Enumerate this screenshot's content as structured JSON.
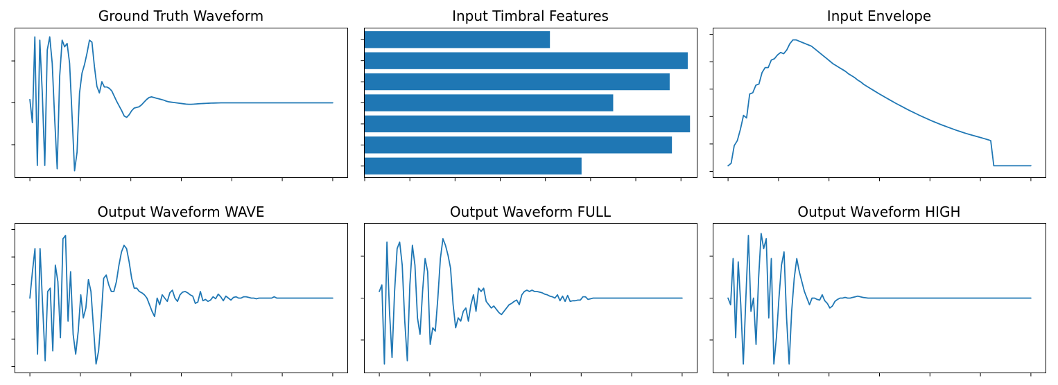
{
  "colors": {
    "series": "#1f77b4",
    "axes": "#000000",
    "background": "#ffffff"
  },
  "chart_data": [
    {
      "type": "line",
      "title": "Ground Truth Waveform",
      "xlabel": "",
      "ylabel": "",
      "x_ticks": 7,
      "y_ticks": 3,
      "xlim": [
        0,
        1
      ],
      "ylim": [
        -1.05,
        1.05
      ],
      "grid": false,
      "legend": "none",
      "values": [
        0.05,
        -0.3,
        1.0,
        -0.95,
        0.95,
        0.15,
        -0.95,
        0.8,
        1.0,
        0.6,
        -0.25,
        -1.0,
        0.4,
        0.95,
        0.85,
        0.9,
        0.6,
        -0.2,
        -1.03,
        -0.75,
        0.15,
        0.45,
        0.58,
        0.75,
        0.95,
        0.92,
        0.55,
        0.25,
        0.15,
        0.32,
        0.24,
        0.24,
        0.22,
        0.18,
        0.1,
        0.02,
        -0.05,
        -0.12,
        -0.2,
        -0.22,
        -0.18,
        -0.12,
        -0.08,
        -0.07,
        -0.06,
        -0.03,
        0.01,
        0.05,
        0.08,
        0.09,
        0.08,
        0.07,
        0.06,
        0.05,
        0.04,
        0.025,
        0.015,
        0.01,
        0.005,
        0.0,
        -0.005,
        -0.01,
        -0.015,
        -0.02,
        -0.022,
        -0.022,
        -0.02,
        -0.017,
        -0.014,
        -0.012,
        -0.01,
        -0.008,
        -0.006,
        -0.004,
        -0.003,
        -0.002,
        -0.001,
        0.0,
        0.0,
        0.0,
        0.0,
        0.0,
        0.0,
        0.0,
        0.0,
        0.0,
        0.0,
        0.0,
        0.0,
        0.0,
        0.0,
        0.0,
        0.0,
        0.0,
        0.0,
        0.0,
        0.0,
        0.0,
        0.0,
        0.0,
        0.0,
        0.0,
        0.0,
        0.0,
        0.0,
        0.0,
        0.0,
        0.0,
        0.0,
        0.0,
        0.0,
        0.0,
        0.0,
        0.0,
        0.0,
        0.0,
        0.0,
        0.0,
        0.0,
        0.0,
        0.0,
        0.0,
        0.0
      ]
    },
    {
      "type": "bar",
      "orientation": "horizontal",
      "title": "Input Timbral Features",
      "xlabel": "",
      "ylabel": "",
      "x_ticks": 8,
      "y_ticks": 7,
      "xlim": [
        0,
        0.735
      ],
      "grid": false,
      "legend": "none",
      "values": [
        0.41,
        0.715,
        0.675,
        0.55,
        0.72,
        0.68,
        0.48
      ]
    },
    {
      "type": "line",
      "title": "Input Envelope",
      "xlabel": "",
      "ylabel": "",
      "x_ticks": 7,
      "y_ticks": 6,
      "xlim": [
        0,
        1
      ],
      "ylim": [
        -0.05,
        1.05
      ],
      "grid": false,
      "legend": "none",
      "values": [
        0.0,
        0.02,
        0.16,
        0.2,
        0.29,
        0.4,
        0.38,
        0.57,
        0.58,
        0.64,
        0.65,
        0.74,
        0.78,
        0.78,
        0.84,
        0.85,
        0.88,
        0.9,
        0.89,
        0.92,
        0.97,
        1.0,
        1.0,
        0.99,
        0.98,
        0.97,
        0.96,
        0.95,
        0.93,
        0.91,
        0.89,
        0.87,
        0.85,
        0.83,
        0.81,
        0.795,
        0.78,
        0.765,
        0.75,
        0.73,
        0.715,
        0.7,
        0.68,
        0.665,
        0.645,
        0.63,
        0.615,
        0.6,
        0.585,
        0.57,
        0.556,
        0.542,
        0.528,
        0.514,
        0.5,
        0.487,
        0.474,
        0.461,
        0.448,
        0.436,
        0.424,
        0.412,
        0.4,
        0.389,
        0.378,
        0.367,
        0.356,
        0.346,
        0.336,
        0.326,
        0.317,
        0.308,
        0.299,
        0.29,
        0.281,
        0.273,
        0.265,
        0.257,
        0.25,
        0.243,
        0.236,
        0.229,
        0.222,
        0.215,
        0.208,
        0.2,
        0.0,
        0.0,
        0.0,
        0.0,
        0.0,
        0.0,
        0.0,
        0.0,
        0.0,
        0.0,
        0.0,
        0.0,
        0.0
      ]
    },
    {
      "type": "line",
      "title": "Output Waveform WAVE",
      "xlabel": "",
      "ylabel": "",
      "x_ticks": 7,
      "y_ticks": 6,
      "xlim": [
        0,
        1
      ],
      "ylim": [
        -1.05,
        1.05
      ],
      "grid": false,
      "legend": "none",
      "values": [
        0.0,
        0.4,
        0.75,
        -0.85,
        0.75,
        -0.1,
        -0.95,
        0.1,
        0.15,
        -0.8,
        0.5,
        0.25,
        -0.6,
        0.9,
        0.95,
        -0.35,
        0.4,
        -0.55,
        -0.85,
        -0.5,
        0.05,
        -0.3,
        -0.15,
        0.28,
        0.1,
        -0.45,
        -1.0,
        -0.8,
        -0.3,
        0.3,
        0.35,
        0.2,
        0.1,
        0.1,
        0.25,
        0.5,
        0.7,
        0.8,
        0.75,
        0.55,
        0.3,
        0.15,
        0.15,
        0.1,
        0.08,
        0.05,
        0.0,
        -0.1,
        -0.2,
        -0.28,
        0.0,
        -0.1,
        0.05,
        0.0,
        -0.05,
        0.08,
        0.12,
        0.0,
        -0.05,
        0.05,
        0.09,
        0.1,
        0.08,
        0.05,
        0.03,
        -0.08,
        -0.06,
        0.1,
        -0.04,
        -0.02,
        -0.05,
        -0.03,
        0.02,
        -0.01,
        0.06,
        0.02,
        -0.04,
        0.03,
        0.0,
        -0.03,
        0.01,
        0.02,
        0.0,
        0.0,
        0.02,
        0.02,
        0.01,
        0.0,
        0.0,
        -0.01,
        0.0,
        0.0,
        0.0,
        0.0,
        0.0,
        0.0,
        0.02,
        0.0,
        0.0,
        0.0,
        0.0,
        0.0,
        0.0,
        0.0,
        0.0,
        0.0,
        0.0,
        0.0,
        0.0,
        0.0,
        0.0,
        0.0,
        0.0,
        0.0,
        0.0,
        0.0,
        0.0,
        0.0,
        0.0,
        0.0
      ]
    },
    {
      "type": "line",
      "title": "Output Waveform FULL",
      "xlabel": "",
      "ylabel": "",
      "x_ticks": 7,
      "y_ticks": 3,
      "xlim": [
        0,
        1
      ],
      "ylim": [
        -1.05,
        1.05
      ],
      "grid": false,
      "legend": "none",
      "values": [
        0.1,
        0.2,
        -1.0,
        0.85,
        -0.2,
        -0.9,
        0.1,
        0.75,
        0.85,
        0.5,
        -0.35,
        -0.95,
        0.2,
        0.8,
        0.5,
        -0.3,
        -0.55,
        0.1,
        0.6,
        0.4,
        -0.7,
        -0.45,
        -0.5,
        0.0,
        0.6,
        0.9,
        0.8,
        0.65,
        0.45,
        -0.1,
        -0.45,
        -0.3,
        -0.35,
        -0.2,
        -0.15,
        -0.35,
        -0.1,
        0.05,
        -0.2,
        0.15,
        0.1,
        0.15,
        -0.05,
        -0.1,
        -0.15,
        -0.12,
        -0.17,
        -0.22,
        -0.25,
        -0.2,
        -0.15,
        -0.1,
        -0.08,
        -0.05,
        -0.03,
        -0.1,
        0.05,
        0.1,
        0.12,
        0.1,
        0.12,
        0.1,
        0.1,
        0.09,
        0.08,
        0.06,
        0.05,
        0.03,
        0.02,
        0.0,
        0.05,
        -0.04,
        0.03,
        -0.05,
        0.04,
        -0.05,
        -0.04,
        -0.04,
        -0.03,
        -0.03,
        0.02,
        0.02,
        -0.02,
        -0.01,
        0.0,
        0.0,
        0.0,
        0.0,
        0.0,
        0.0,
        0.0,
        0.0,
        0.0,
        0.0,
        0.0,
        0.0,
        0.0,
        0.0,
        0.0,
        0.0,
        0.0,
        0.0,
        0.0,
        0.0,
        0.0,
        0.0,
        0.0,
        0.0,
        0.0,
        0.0,
        0.0,
        0.0,
        0.0,
        0.0,
        0.0,
        0.0,
        0.0,
        0.0,
        0.0,
        0.0
      ]
    },
    {
      "type": "line",
      "title": "Output Waveform HIGH",
      "xlabel": "",
      "ylabel": "",
      "x_ticks": 7,
      "y_ticks": 3,
      "xlim": [
        0,
        1
      ],
      "ylim": [
        -1.05,
        1.05
      ],
      "grid": false,
      "legend": "none",
      "values": [
        0.0,
        -0.1,
        0.6,
        -0.6,
        0.55,
        -0.1,
        -1.0,
        0.0,
        0.95,
        -0.2,
        0.0,
        -0.7,
        0.3,
        0.98,
        0.75,
        0.9,
        -0.3,
        0.6,
        -1.0,
        -0.6,
        0.0,
        0.5,
        0.7,
        -0.3,
        -1.0,
        -0.2,
        0.3,
        0.6,
        0.4,
        0.25,
        0.1,
        0.0,
        -0.1,
        0.0,
        0.0,
        -0.02,
        -0.03,
        0.05,
        -0.04,
        -0.08,
        -0.15,
        -0.12,
        -0.05,
        -0.02,
        0.0,
        0.0,
        0.01,
        0.0,
        0.0,
        0.01,
        0.02,
        0.03,
        0.02,
        0.01,
        0.005,
        0.0,
        0.0,
        0.0,
        0.0,
        0.0,
        0.0,
        0.0,
        0.0,
        0.0,
        0.0,
        0.0,
        0.0,
        0.0,
        0.0,
        0.0,
        0.0,
        0.0,
        0.0,
        0.0,
        0.0,
        0.0,
        0.0,
        0.0,
        0.0,
        0.0,
        0.0,
        0.0,
        0.0,
        0.0,
        0.0,
        0.0,
        0.0,
        0.0,
        0.0,
        0.0,
        0.0,
        0.0,
        0.0,
        0.0,
        0.0,
        0.0,
        0.0,
        0.0,
        0.0,
        0.0,
        0.0,
        0.0,
        0.0,
        0.0,
        0.0,
        0.0,
        0.0,
        0.0,
        0.0,
        0.0,
        0.0,
        0.0,
        0.0,
        0.0,
        0.0,
        0.0,
        0.0,
        0.0,
        0.0,
        0.0
      ]
    }
  ]
}
